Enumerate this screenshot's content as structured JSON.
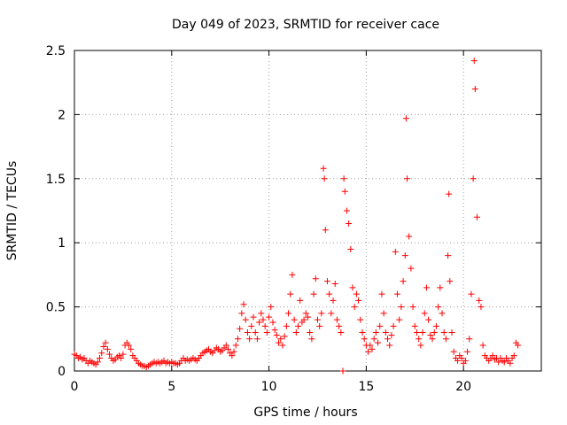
{
  "chart_data": {
    "type": "scatter",
    "title": "Day 049 of 2023, SRMTID for receiver cace",
    "xlabel": "GPS time / hours",
    "ylabel": "SRMTID / TECUs",
    "xlim": [
      0,
      24
    ],
    "ylim": [
      0,
      2.5
    ],
    "xticks": [
      0,
      5,
      10,
      15,
      20
    ],
    "xtick_labels": [
      "0",
      "5",
      "10",
      "15",
      "20"
    ],
    "yticks": [
      0,
      0.5,
      1,
      1.5,
      2,
      2.5
    ],
    "ytick_labels": [
      "0",
      "0.5",
      "1",
      "1.5",
      "2",
      "2.5"
    ],
    "grid": true,
    "marker": "plus",
    "series_color": "#ff0000",
    "series": [
      {
        "name": "SRMTID",
        "points": [
          [
            0.0,
            0.13
          ],
          [
            0.1,
            0.12
          ],
          [
            0.2,
            0.1
          ],
          [
            0.3,
            0.11
          ],
          [
            0.4,
            0.09
          ],
          [
            0.5,
            0.1
          ],
          [
            0.6,
            0.08
          ],
          [
            0.7,
            0.06
          ],
          [
            0.8,
            0.08
          ],
          [
            0.9,
            0.07
          ],
          [
            1.0,
            0.06
          ],
          [
            1.1,
            0.05
          ],
          [
            1.2,
            0.07
          ],
          [
            1.3,
            0.1
          ],
          [
            1.4,
            0.14
          ],
          [
            1.5,
            0.19
          ],
          [
            1.6,
            0.22
          ],
          [
            1.7,
            0.17
          ],
          [
            1.8,
            0.13
          ],
          [
            1.9,
            0.1
          ],
          [
            2.0,
            0.08
          ],
          [
            2.1,
            0.09
          ],
          [
            2.2,
            0.11
          ],
          [
            2.3,
            0.12
          ],
          [
            2.4,
            0.1
          ],
          [
            2.5,
            0.13
          ],
          [
            2.6,
            0.2
          ],
          [
            2.7,
            0.22
          ],
          [
            2.8,
            0.2
          ],
          [
            2.9,
            0.17
          ],
          [
            3.0,
            0.12
          ],
          [
            3.1,
            0.1
          ],
          [
            3.2,
            0.08
          ],
          [
            3.3,
            0.06
          ],
          [
            3.4,
            0.05
          ],
          [
            3.5,
            0.04
          ],
          [
            3.6,
            0.04
          ],
          [
            3.7,
            0.03
          ],
          [
            3.8,
            0.04
          ],
          [
            3.9,
            0.05
          ],
          [
            4.0,
            0.06
          ],
          [
            4.1,
            0.07
          ],
          [
            4.2,
            0.06
          ],
          [
            4.3,
            0.07
          ],
          [
            4.4,
            0.06
          ],
          [
            4.5,
            0.07
          ],
          [
            4.6,
            0.08
          ],
          [
            4.7,
            0.06
          ],
          [
            4.8,
            0.07
          ],
          [
            4.9,
            0.06
          ],
          [
            5.0,
            0.07
          ],
          [
            5.1,
            0.06
          ],
          [
            5.2,
            0.06
          ],
          [
            5.3,
            0.05
          ],
          [
            5.4,
            0.06
          ],
          [
            5.5,
            0.08
          ],
          [
            5.6,
            0.1
          ],
          [
            5.7,
            0.08
          ],
          [
            5.8,
            0.09
          ],
          [
            5.9,
            0.08
          ],
          [
            6.0,
            0.09
          ],
          [
            6.1,
            0.1
          ],
          [
            6.2,
            0.09
          ],
          [
            6.3,
            0.08
          ],
          [
            6.4,
            0.1
          ],
          [
            6.5,
            0.12
          ],
          [
            6.6,
            0.14
          ],
          [
            6.7,
            0.15
          ],
          [
            6.8,
            0.16
          ],
          [
            6.9,
            0.17
          ],
          [
            7.0,
            0.15
          ],
          [
            7.1,
            0.14
          ],
          [
            7.2,
            0.16
          ],
          [
            7.3,
            0.18
          ],
          [
            7.4,
            0.17
          ],
          [
            7.5,
            0.15
          ],
          [
            7.6,
            0.16
          ],
          [
            7.7,
            0.18
          ],
          [
            7.8,
            0.2
          ],
          [
            7.9,
            0.17
          ],
          [
            8.0,
            0.14
          ],
          [
            8.1,
            0.12
          ],
          [
            8.2,
            0.15
          ],
          [
            8.3,
            0.2
          ],
          [
            8.4,
            0.25
          ],
          [
            8.5,
            0.33
          ],
          [
            8.6,
            0.45
          ],
          [
            8.7,
            0.52
          ],
          [
            8.8,
            0.4
          ],
          [
            8.9,
            0.3
          ],
          [
            9.0,
            0.25
          ],
          [
            9.1,
            0.35
          ],
          [
            9.2,
            0.42
          ],
          [
            9.3,
            0.3
          ],
          [
            9.4,
            0.25
          ],
          [
            9.5,
            0.38
          ],
          [
            9.6,
            0.45
          ],
          [
            9.7,
            0.4
          ],
          [
            9.8,
            0.35
          ],
          [
            9.9,
            0.3
          ],
          [
            10.0,
            0.42
          ],
          [
            10.1,
            0.5
          ],
          [
            10.2,
            0.38
          ],
          [
            10.3,
            0.32
          ],
          [
            10.4,
            0.28
          ],
          [
            10.5,
            0.22
          ],
          [
            10.6,
            0.25
          ],
          [
            10.7,
            0.2
          ],
          [
            10.8,
            0.27
          ],
          [
            10.9,
            0.35
          ],
          [
            11.0,
            0.45
          ],
          [
            11.1,
            0.6
          ],
          [
            11.2,
            0.75
          ],
          [
            11.3,
            0.4
          ],
          [
            11.4,
            0.3
          ],
          [
            11.5,
            0.35
          ],
          [
            11.6,
            0.55
          ],
          [
            11.7,
            0.38
          ],
          [
            11.8,
            0.4
          ],
          [
            11.9,
            0.45
          ],
          [
            12.0,
            0.42
          ],
          [
            12.1,
            0.3
          ],
          [
            12.2,
            0.25
          ],
          [
            12.3,
            0.6
          ],
          [
            12.4,
            0.72
          ],
          [
            12.5,
            0.4
          ],
          [
            12.6,
            0.35
          ],
          [
            12.7,
            0.45
          ],
          [
            12.8,
            1.58
          ],
          [
            12.85,
            1.5
          ],
          [
            12.9,
            1.1
          ],
          [
            13.0,
            0.7
          ],
          [
            13.1,
            0.6
          ],
          [
            13.2,
            0.45
          ],
          [
            13.3,
            0.55
          ],
          [
            13.4,
            0.68
          ],
          [
            13.5,
            0.4
          ],
          [
            13.6,
            0.35
          ],
          [
            13.7,
            0.3
          ],
          [
            13.8,
            0.0
          ],
          [
            13.85,
            1.5
          ],
          [
            13.9,
            1.4
          ],
          [
            14.0,
            1.25
          ],
          [
            14.1,
            1.15
          ],
          [
            14.2,
            0.95
          ],
          [
            14.3,
            0.65
          ],
          [
            14.4,
            0.5
          ],
          [
            14.5,
            0.6
          ],
          [
            14.6,
            0.55
          ],
          [
            14.7,
            0.4
          ],
          [
            14.8,
            0.3
          ],
          [
            14.9,
            0.25
          ],
          [
            15.0,
            0.2
          ],
          [
            15.1,
            0.15
          ],
          [
            15.2,
            0.2
          ],
          [
            15.3,
            0.17
          ],
          [
            15.4,
            0.25
          ],
          [
            15.5,
            0.3
          ],
          [
            15.6,
            0.22
          ],
          [
            15.7,
            0.35
          ],
          [
            15.8,
            0.6
          ],
          [
            15.9,
            0.45
          ],
          [
            16.0,
            0.3
          ],
          [
            16.1,
            0.25
          ],
          [
            16.2,
            0.2
          ],
          [
            16.3,
            0.28
          ],
          [
            16.4,
            0.35
          ],
          [
            16.5,
            0.93
          ],
          [
            16.6,
            0.6
          ],
          [
            16.7,
            0.4
          ],
          [
            16.8,
            0.5
          ],
          [
            16.9,
            0.7
          ],
          [
            17.0,
            0.9
          ],
          [
            17.05,
            1.97
          ],
          [
            17.1,
            1.5
          ],
          [
            17.2,
            1.05
          ],
          [
            17.3,
            0.8
          ],
          [
            17.4,
            0.5
          ],
          [
            17.5,
            0.35
          ],
          [
            17.6,
            0.3
          ],
          [
            17.7,
            0.25
          ],
          [
            17.8,
            0.2
          ],
          [
            17.9,
            0.3
          ],
          [
            18.0,
            0.45
          ],
          [
            18.1,
            0.65
          ],
          [
            18.2,
            0.4
          ],
          [
            18.3,
            0.28
          ],
          [
            18.4,
            0.25
          ],
          [
            18.5,
            0.3
          ],
          [
            18.6,
            0.35
          ],
          [
            18.7,
            0.5
          ],
          [
            18.8,
            0.65
          ],
          [
            18.9,
            0.45
          ],
          [
            19.0,
            0.3
          ],
          [
            19.1,
            0.25
          ],
          [
            19.2,
            0.9
          ],
          [
            19.25,
            1.38
          ],
          [
            19.3,
            0.7
          ],
          [
            19.4,
            0.3
          ],
          [
            19.5,
            0.15
          ],
          [
            19.6,
            0.1
          ],
          [
            19.7,
            0.08
          ],
          [
            19.8,
            0.12
          ],
          [
            19.9,
            0.1
          ],
          [
            20.0,
            0.06
          ],
          [
            20.1,
            0.08
          ],
          [
            20.2,
            0.15
          ],
          [
            20.3,
            0.25
          ],
          [
            20.4,
            0.6
          ],
          [
            20.5,
            1.5
          ],
          [
            20.55,
            2.42
          ],
          [
            20.6,
            2.2
          ],
          [
            20.7,
            1.2
          ],
          [
            20.8,
            0.55
          ],
          [
            20.9,
            0.5
          ],
          [
            21.0,
            0.2
          ],
          [
            21.1,
            0.12
          ],
          [
            21.2,
            0.1
          ],
          [
            21.3,
            0.08
          ],
          [
            21.4,
            0.1
          ],
          [
            21.5,
            0.12
          ],
          [
            21.6,
            0.09
          ],
          [
            21.7,
            0.1
          ],
          [
            21.8,
            0.07
          ],
          [
            21.9,
            0.1
          ],
          [
            22.0,
            0.08
          ],
          [
            22.1,
            0.07
          ],
          [
            22.2,
            0.1
          ],
          [
            22.3,
            0.08
          ],
          [
            22.4,
            0.06
          ],
          [
            22.5,
            0.1
          ],
          [
            22.6,
            0.12
          ],
          [
            22.7,
            0.22
          ],
          [
            22.8,
            0.2
          ]
        ]
      }
    ]
  }
}
